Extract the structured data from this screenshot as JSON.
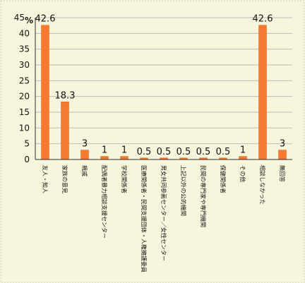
{
  "chart_data": {
    "type": "bar",
    "title": "",
    "xlabel": "",
    "ylabel": "",
    "unit": "%",
    "ylim": [
      0,
      45
    ],
    "yticks": [
      0,
      5,
      10,
      15,
      20,
      25,
      30,
      35,
      40,
      45
    ],
    "grid": true,
    "categories": [
      "友人・知人",
      "家族の意見",
      "親戚",
      "配偶者暴力相談支援センター",
      "学校関係者",
      "医療関係者・民間支援団体・人権擁護委員",
      "男女共同参画センター／女性センター",
      "上記以外の公的機関",
      "民間の専門家や専門機関",
      "保健関係者",
      "その他",
      "相談しなかった",
      "無回答"
    ],
    "values": [
      42.6,
      18.3,
      3,
      1,
      1,
      0.5,
      0.5,
      0.5,
      0.5,
      0.5,
      1,
      42.6,
      3
    ],
    "value_labels": [
      "42.6",
      "18.3",
      "3",
      "1",
      "1",
      "0.5",
      "0.5",
      "0.5",
      "0.5",
      "0.5",
      "1",
      "42.6",
      "3"
    ],
    "colors": {
      "bar": "#f47a30",
      "bar_edge": "#e06420",
      "background": "#f7f6dc",
      "grid": "#bdbdbd",
      "axis": "#333333",
      "text": "#111111"
    }
  }
}
